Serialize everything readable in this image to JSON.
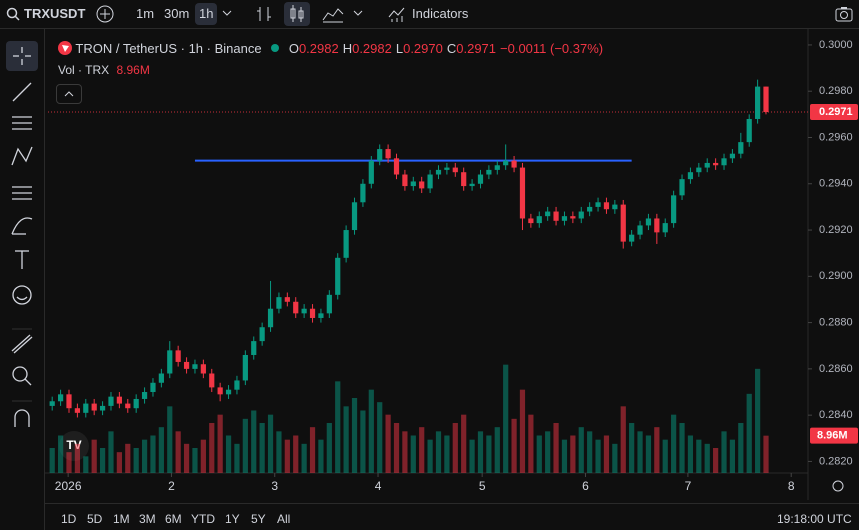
{
  "toolbar": {
    "symbol": "TRXUSDT",
    "intervals": [
      "1m",
      "30m",
      "1h"
    ],
    "indicators": "Indicators"
  },
  "bottom": {
    "ranges": [
      "1D",
      "5D",
      "1M",
      "3M",
      "6M",
      "YTD",
      "1Y",
      "5Y",
      "All"
    ],
    "clock": "19:18:00 UTC"
  },
  "chart_data": {
    "type": "candlestick",
    "title": "TRON / TetherUS · 1h · Binance",
    "legend_items": [
      {
        "label": "O",
        "value": "0.2982"
      },
      {
        "label": "H",
        "value": "0.2982"
      },
      {
        "label": "L",
        "value": "0.2970"
      },
      {
        "label": "C",
        "value": "0.2971"
      }
    ],
    "change": "−0.0011 (−0.37%)",
    "volume_title": "Vol · TRX",
    "volume_label": "8.96M",
    "up_color": "#089981",
    "down_color": "#f23645",
    "open": [
      0.2844,
      0.2846,
      0.2849,
      0.2843,
      0.2841,
      0.2845,
      0.2842,
      0.2844,
      0.2848,
      0.2845,
      0.2843,
      0.2847,
      0.285,
      0.2854,
      0.2858,
      0.2868,
      0.2863,
      0.286,
      0.2862,
      0.2858,
      0.2852,
      0.2849,
      0.2851,
      0.2855,
      0.2866,
      0.2872,
      0.2878,
      0.2886,
      0.2891,
      0.2889,
      0.2884,
      0.2886,
      0.2882,
      0.2884,
      0.2892,
      0.2908,
      0.292,
      0.2932,
      0.294,
      0.295,
      0.2955,
      0.2951,
      0.2944,
      0.2939,
      0.2941,
      0.2938,
      0.2944,
      0.2946,
      0.2947,
      0.2945,
      0.2939,
      0.294,
      0.2944,
      0.2946,
      0.2948,
      0.295,
      0.2947,
      0.2925,
      0.2923,
      0.2926,
      0.2928,
      0.2924,
      0.2926,
      0.2925,
      0.2928,
      0.293,
      0.2932,
      0.2929,
      0.2931,
      0.2915,
      0.2918,
      0.2922,
      0.2925,
      0.2919,
      0.2923,
      0.2935,
      0.2942,
      0.2945,
      0.2947,
      0.2949,
      0.2948,
      0.2951,
      0.2953,
      0.2958,
      0.2968,
      0.2982
    ],
    "high": [
      0.2848,
      0.2851,
      0.2851,
      0.2845,
      0.2847,
      0.2847,
      0.2846,
      0.285,
      0.285,
      0.2847,
      0.2849,
      0.2852,
      0.2856,
      0.286,
      0.2872,
      0.287,
      0.2865,
      0.2864,
      0.2864,
      0.286,
      0.2854,
      0.2853,
      0.2857,
      0.2868,
      0.2874,
      0.288,
      0.2898,
      0.2893,
      0.2893,
      0.2891,
      0.2888,
      0.2888,
      0.2886,
      0.2894,
      0.291,
      0.2922,
      0.2934,
      0.2942,
      0.2952,
      0.2957,
      0.2957,
      0.2953,
      0.2946,
      0.2943,
      0.2943,
      0.2946,
      0.2948,
      0.2949,
      0.2949,
      0.2947,
      0.2942,
      0.2946,
      0.2948,
      0.295,
      0.2957,
      0.2952,
      0.2949,
      0.2927,
      0.2928,
      0.293,
      0.293,
      0.2928,
      0.2928,
      0.293,
      0.2932,
      0.2934,
      0.2934,
      0.2933,
      0.2933,
      0.292,
      0.2924,
      0.2927,
      0.2927,
      0.2925,
      0.2937,
      0.2944,
      0.2947,
      0.2949,
      0.2951,
      0.2951,
      0.2953,
      0.2955,
      0.2962,
      0.297,
      0.2985,
      0.2982
    ],
    "low": [
      0.2842,
      0.2844,
      0.2841,
      0.2839,
      0.2839,
      0.284,
      0.284,
      0.2842,
      0.2843,
      0.2841,
      0.2841,
      0.2845,
      0.2848,
      0.2852,
      0.2856,
      0.2861,
      0.2858,
      0.2858,
      0.2856,
      0.285,
      0.2846,
      0.2847,
      0.2849,
      0.2853,
      0.2864,
      0.287,
      0.2876,
      0.2884,
      0.2887,
      0.2882,
      0.2882,
      0.288,
      0.288,
      0.2882,
      0.289,
      0.2906,
      0.2918,
      0.293,
      0.2938,
      0.2948,
      0.2949,
      0.2942,
      0.2937,
      0.2937,
      0.2936,
      0.2936,
      0.2942,
      0.2944,
      0.2943,
      0.2937,
      0.2937,
      0.2938,
      0.2942,
      0.2944,
      0.2946,
      0.2945,
      0.292,
      0.2921,
      0.2921,
      0.2924,
      0.2922,
      0.2922,
      0.2923,
      0.2923,
      0.2926,
      0.2928,
      0.2927,
      0.2927,
      0.2912,
      0.2913,
      0.2916,
      0.292,
      0.2914,
      0.2917,
      0.2921,
      0.2933,
      0.294,
      0.2943,
      0.2945,
      0.2946,
      0.2946,
      0.2949,
      0.2951,
      0.2956,
      0.2966,
      0.297
    ],
    "close": [
      0.2846,
      0.2849,
      0.2843,
      0.2841,
      0.2845,
      0.2842,
      0.2844,
      0.2848,
      0.2845,
      0.2843,
      0.2847,
      0.285,
      0.2854,
      0.2858,
      0.2868,
      0.2863,
      0.286,
      0.2862,
      0.2858,
      0.2852,
      0.2849,
      0.2851,
      0.2855,
      0.2866,
      0.2872,
      0.2878,
      0.2886,
      0.2891,
      0.2889,
      0.2884,
      0.2886,
      0.2882,
      0.2884,
      0.2892,
      0.2908,
      0.292,
      0.2932,
      0.294,
      0.295,
      0.2955,
      0.2951,
      0.2944,
      0.2939,
      0.2941,
      0.2938,
      0.2944,
      0.2946,
      0.2947,
      0.2945,
      0.2939,
      0.294,
      0.2944,
      0.2946,
      0.2948,
      0.295,
      0.2947,
      0.2925,
      0.2923,
      0.2926,
      0.2928,
      0.2924,
      0.2926,
      0.2925,
      0.2928,
      0.293,
      0.2932,
      0.2929,
      0.2931,
      0.2915,
      0.2918,
      0.2922,
      0.2925,
      0.2919,
      0.2923,
      0.2935,
      0.2942,
      0.2945,
      0.2947,
      0.2949,
      0.2948,
      0.2951,
      0.2953,
      0.2958,
      0.2968,
      0.2982,
      0.2971
    ],
    "volume": [
      6,
      9,
      5,
      7,
      4,
      8,
      6,
      10,
      5,
      7,
      6,
      8,
      9,
      11,
      16,
      10,
      7,
      6,
      8,
      12,
      14,
      9,
      7,
      13,
      15,
      12,
      14,
      10,
      8,
      9,
      7,
      11,
      8,
      12,
      22,
      16,
      18,
      15,
      20,
      17,
      14,
      12,
      10,
      9,
      11,
      8,
      10,
      9,
      12,
      14,
      8,
      10,
      9,
      11,
      26,
      13,
      20,
      14,
      9,
      10,
      12,
      8,
      9,
      11,
      10,
      8,
      9,
      7,
      16,
      12,
      10,
      9,
      11,
      8,
      14,
      12,
      9,
      8,
      7,
      6,
      10,
      8,
      12,
      19,
      25,
      8.96
    ],
    "vlim": [
      0,
      30
    ],
    "hline": {
      "value": 0.295,
      "from": 17,
      "to": 69,
      "color": "#2962ff"
    },
    "xlim": [
      -0.5,
      90
    ],
    "xticks": [
      {
        "value": 1.9,
        "label": "2026"
      },
      {
        "value": 14.2,
        "label": "2"
      },
      {
        "value": 26.5,
        "label": "3"
      },
      {
        "value": 38.8,
        "label": "4"
      },
      {
        "value": 51.2,
        "label": "5"
      },
      {
        "value": 63.5,
        "label": "6"
      },
      {
        "value": 75.7,
        "label": "7"
      },
      {
        "value": 88,
        "label": "8"
      }
    ],
    "ylim": [
      0.2815,
      0.3003
    ],
    "yticks": [
      {
        "value": 0.3,
        "label": "0.3000"
      },
      {
        "value": 0.298,
        "label": "0.2980"
      },
      {
        "value": 0.296,
        "label": "0.2960"
      },
      {
        "value": 0.294,
        "label": "0.2940"
      },
      {
        "value": 0.292,
        "label": "0.2920"
      },
      {
        "value": 0.29,
        "label": "0.2900"
      },
      {
        "value": 0.288,
        "label": "0.2880"
      },
      {
        "value": 0.286,
        "label": "0.2860"
      },
      {
        "value": 0.284,
        "label": "0.2840"
      },
      {
        "value": 0.282,
        "label": "0.2820"
      }
    ]
  }
}
